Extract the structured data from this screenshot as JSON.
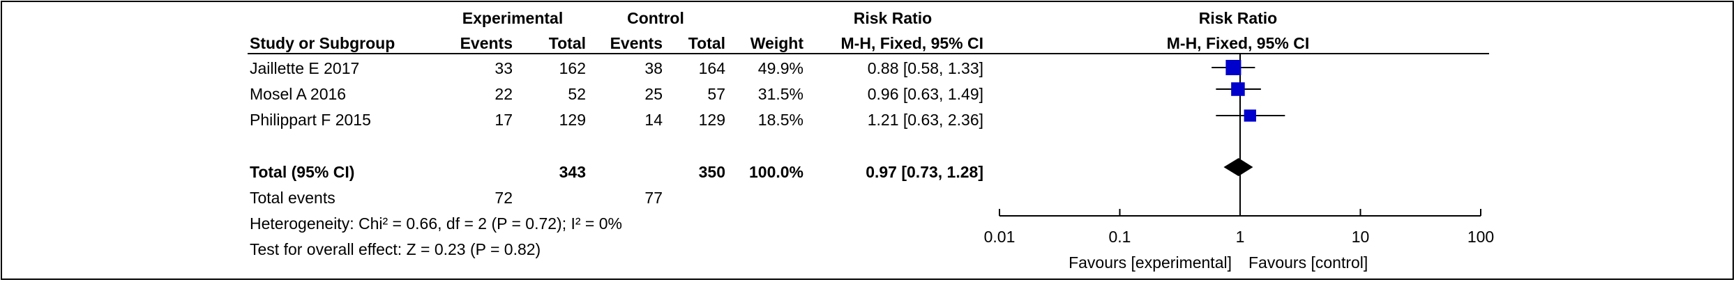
{
  "header": {
    "experimental": "Experimental",
    "control": "Control",
    "risk_ratio": "Risk Ratio",
    "plot_title": "Risk Ratio",
    "study": "Study or Subgroup",
    "exp_events": "Events",
    "exp_total": "Total",
    "ctl_events": "Events",
    "ctl_total": "Total",
    "weight": "Weight",
    "method": "M-H, Fixed, 95% CI",
    "plot_method": "M-H, Fixed, 95% CI"
  },
  "studies": [
    {
      "name": "Jaillette E 2017",
      "exp_events": "33",
      "exp_total": "162",
      "ctl_events": "38",
      "ctl_total": "164",
      "weight": "49.9%",
      "rr_text": "0.88 [0.58, 1.33]"
    },
    {
      "name": "Mosel A 2016",
      "exp_events": "22",
      "exp_total": "52",
      "ctl_events": "25",
      "ctl_total": "57",
      "weight": "31.5%",
      "rr_text": "0.96 [0.63, 1.49]"
    },
    {
      "name": "Philippart F 2015",
      "exp_events": "17",
      "exp_total": "129",
      "ctl_events": "14",
      "ctl_total": "129",
      "weight": "18.5%",
      "rr_text": "1.21 [0.63, 2.36]"
    }
  ],
  "total": {
    "label": "Total (95% CI)",
    "exp_total": "343",
    "ctl_total": "350",
    "weight": "100.0%",
    "rr_text": "0.97 [0.73, 1.28]"
  },
  "total_events": {
    "label": "Total events",
    "exp": "72",
    "ctl": "77"
  },
  "heterogeneity": "Heterogeneity: Chi² = 0.66, df = 2 (P = 0.72); I² = 0%",
  "overall_effect": "Test for overall effect: Z = 0.23 (P = 0.82)",
  "chart_data": {
    "type": "scatter",
    "title": "Risk Ratio",
    "subtitle": "M-H, Fixed, 95% CI",
    "x_scale": "log",
    "xlim": [
      0.01,
      100
    ],
    "x_ticks": [
      0.01,
      0.1,
      1,
      10,
      100
    ],
    "x_tick_labels": [
      "0.01",
      "0.1",
      "1",
      "10",
      "100"
    ],
    "favours_left": "Favours [experimental]",
    "favours_right": "Favours [control]",
    "null_line": 1,
    "studies": [
      {
        "name": "Jaillette E 2017",
        "rr": 0.88,
        "lo": 0.58,
        "hi": 1.33,
        "weight": 49.9
      },
      {
        "name": "Mosel A 2016",
        "rr": 0.96,
        "lo": 0.63,
        "hi": 1.49,
        "weight": 31.5
      },
      {
        "name": "Philippart F 2015",
        "rr": 1.21,
        "lo": 0.63,
        "hi": 2.36,
        "weight": 18.5
      }
    ],
    "pooled": {
      "rr": 0.97,
      "lo": 0.73,
      "hi": 1.28
    },
    "marker_color": "#0000cc",
    "diamond_color": "#000000"
  }
}
